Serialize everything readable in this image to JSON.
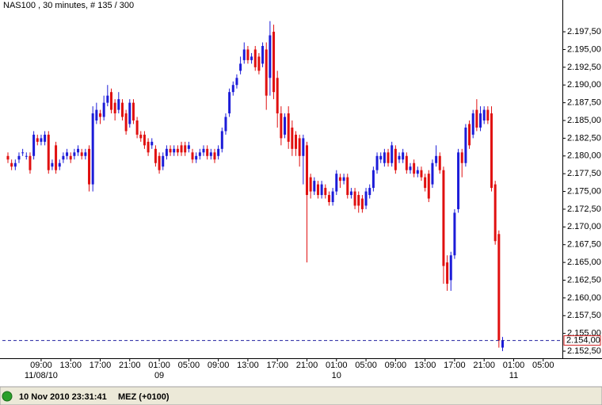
{
  "chart_data": {
    "type": "candlestick",
    "title": "NAS100 , 30 minutes, # 135 / 300",
    "up_color": "#1c1cd8",
    "down_color": "#e01010",
    "current_line_color": "#2020a0",
    "current_box_color": "#d02020",
    "open": [
      2180,
      2179,
      2178.5,
      2179.5,
      2180.5,
      2180,
      2180,
      2180,
      2182.5,
      2182,
      2182,
      2183,
      2178.5,
      2181.5,
      2178.5,
      2179.5,
      2180,
      2180,
      2180,
      2180.5,
      2180.5,
      2180,
      2181,
      2176,
      2185,
      2186,
      2185.5,
      2187.5,
      2189,
      2187.5,
      2186.5,
      2187.5,
      2186,
      2184.5,
      2187.5,
      2185,
      2183,
      2183,
      2182,
      2181.5,
      2181,
      2180,
      2178.5,
      2180,
      2181,
      2180.5,
      2181,
      2181.5,
      2181.5,
      2181,
      2180.5,
      2179.5,
      2180,
      2180.5,
      2181,
      2180,
      2180.5,
      2180,
      2181,
      2183.5,
      2186,
      2189,
      2190,
      2192,
      2193.5,
      2195,
      2193.5,
      2195,
      2194,
      2193,
      2195,
      2191,
      2197.5,
      2191,
      2186,
      2183,
      2186,
      2184,
      2183,
      2182.5,
      2180,
      2181.5,
      2177,
      2175,
      2176,
      2174.5,
      2175.5,
      2174.5,
      2173.5,
      2175,
      2177,
      2176.5,
      2177,
      2174.5,
      2175,
      2174.5,
      2174,
      2173,
      2174.5,
      2175.5,
      2178,
      2179.5,
      2179,
      2180.5,
      2179,
      2181,
      2179.5,
      2179.5,
      2180,
      2178,
      2179,
      2177.5,
      2178,
      2177,
      2177.5,
      2176,
      2179,
      2180,
      2178,
      2165,
      2162.5,
      2166,
      2172.5,
      2180.5,
      2179,
      2184.5,
      2183,
      2186.5,
      2184,
      2185,
      2186.5,
      2186,
      2176,
      2169,
      2153
    ],
    "high": [
      2180.5,
      2179.5,
      2179.5,
      2180.5,
      2181,
      2180.5,
      2180.5,
      2183.5,
      2183,
      2183,
      2183.5,
      2183.5,
      2179.5,
      2182,
      2179.5,
      2180.5,
      2181,
      2180.5,
      2181,
      2181.5,
      2181,
      2181,
      2181.5,
      2187,
      2187.5,
      2186.5,
      2188.5,
      2190,
      2189.5,
      2188,
      2189,
      2188,
      2186.5,
      2188,
      2188,
      2185.5,
      2183.5,
      2183.5,
      2182.5,
      2182.5,
      2181.5,
      2180.5,
      2180.5,
      2181.5,
      2181.5,
      2181.5,
      2181.5,
      2182,
      2182,
      2182,
      2181,
      2180.5,
      2181,
      2181.5,
      2181.5,
      2181,
      2181,
      2181.5,
      2184,
      2186,
      2189.5,
      2190.5,
      2191.5,
      2194,
      2196,
      2195.5,
      2194.5,
      2195.5,
      2194.5,
      2196,
      2196,
      2199,
      2198.5,
      2192,
      2187,
      2186,
      2187,
      2185,
      2183.5,
      2183,
      2183,
      2182,
      2177.5,
      2177,
      2176.5,
      2176.5,
      2176,
      2175,
      2175.5,
      2178,
      2177.5,
      2177.5,
      2177.5,
      2175.5,
      2175.5,
      2175,
      2174.5,
      2175.5,
      2176,
      2178.5,
      2180.5,
      2180.5,
      2181,
      2181,
      2182,
      2181.5,
      2180.5,
      2181,
      2180.5,
      2179,
      2179.5,
      2178.5,
      2178.5,
      2177.5,
      2178,
      2179.5,
      2181.5,
      2180.5,
      2178.5,
      2166,
      2166.5,
      2172.5,
      2181,
      2181,
      2184.5,
      2185,
      2186.5,
      2188,
      2187,
      2187,
      2187,
      2187,
      2176.5,
      2169.5,
      2154.5
    ],
    "low": [
      2179,
      2178,
      2178,
      2179,
      2180,
      2179.5,
      2177.5,
      2179.5,
      2181.5,
      2181.5,
      2181.5,
      2177.5,
      2178,
      2177.5,
      2178,
      2179,
      2179.5,
      2179,
      2179.5,
      2180,
      2179.5,
      2179.5,
      2175,
      2175,
      2184.5,
      2184.5,
      2185,
      2187,
      2186,
      2185,
      2186,
      2185,
      2183,
      2184,
      2184.5,
      2182.5,
      2182,
      2181,
      2180,
      2181,
      2178.5,
      2177.5,
      2178,
      2179.5,
      2180,
      2180,
      2180,
      2180,
      2180,
      2180.5,
      2179,
      2179,
      2179.5,
      2180,
      2179.5,
      2179.5,
      2179,
      2179.5,
      2180.5,
      2183,
      2185.5,
      2188.5,
      2189.5,
      2191.5,
      2193,
      2193,
      2193,
      2192,
      2191.5,
      2192.5,
      2186.5,
      2188.5,
      2188,
      2184,
      2181.5,
      2182.5,
      2181,
      2180,
      2180,
      2178.5,
      2176,
      2165,
      2174,
      2174.5,
      2174,
      2174,
      2174,
      2173,
      2173,
      2174.5,
      2175.5,
      2176,
      2174,
      2174,
      2172.5,
      2172,
      2172,
      2172.5,
      2174,
      2175,
      2177.5,
      2179,
      2178.5,
      2178.5,
      2178.5,
      2177.5,
      2179,
      2179,
      2177.5,
      2177.5,
      2177,
      2177,
      2176.5,
      2175,
      2173.5,
      2175.5,
      2178.5,
      2177.5,
      2162,
      2161,
      2161,
      2165.5,
      2172,
      2177,
      2178.5,
      2181,
      2182.5,
      2183.5,
      2183.5,
      2184.5,
      2184.5,
      2175,
      2167.5,
      2153,
      2152.5
    ],
    "close": [
      2179.5,
      2178.5,
      2179,
      2180,
      2180.5,
      2180,
      2178,
      2183,
      2182,
      2182.5,
      2183,
      2178,
      2179,
      2178,
      2179,
      2180,
      2180.5,
      2179.5,
      2180.5,
      2181,
      2180,
      2180.5,
      2176,
      2186,
      2186.5,
      2185.5,
      2187.5,
      2188.5,
      2186.5,
      2186,
      2188,
      2185.5,
      2183.5,
      2187.5,
      2185,
      2183,
      2182.5,
      2181.5,
      2180.5,
      2182,
      2179,
      2178,
      2180,
      2181,
      2180.5,
      2181,
      2180.5,
      2180.5,
      2180.5,
      2181.5,
      2179.5,
      2180,
      2180.5,
      2181,
      2180,
      2180.5,
      2179.5,
      2181,
      2183.5,
      2185.5,
      2189,
      2190,
      2191,
      2193,
      2195,
      2193.5,
      2194,
      2192.5,
      2192,
      2195.5,
      2188.5,
      2197,
      2189,
      2186,
      2182.5,
      2185.5,
      2182,
      2181,
      2181,
      2180,
      2182.5,
      2174.5,
      2175,
      2176.5,
      2174.5,
      2176,
      2174.5,
      2173.5,
      2175,
      2177.5,
      2176.5,
      2177,
      2174.5,
      2175,
      2173,
      2173,
      2172.5,
      2175,
      2175.5,
      2178,
      2180,
      2180,
      2180.5,
      2179,
      2181.5,
      2178,
      2180,
      2180.5,
      2178,
      2178.5,
      2177.5,
      2178,
      2177,
      2175.5,
      2174,
      2179,
      2180,
      2178,
      2164.5,
      2162,
      2166,
      2172,
      2180.5,
      2179,
      2184,
      2181.5,
      2186,
      2184,
      2186,
      2186.5,
      2185,
      2175.5,
      2168,
      2154,
      2154
    ],
    "xlim": [
      -1.5,
      150.2
    ],
    "xticks": [
      {
        "value": 9,
        "label": "09:00"
      },
      {
        "value": 17,
        "label": "13:00"
      },
      {
        "value": 25,
        "label": "17:00"
      },
      {
        "value": 33,
        "label": "21:00"
      },
      {
        "value": 41,
        "label": "01:00"
      },
      {
        "value": 49,
        "label": "05:00"
      },
      {
        "value": 57,
        "label": "09:00"
      },
      {
        "value": 65,
        "label": "13:00"
      },
      {
        "value": 73,
        "label": "17:00"
      },
      {
        "value": 81,
        "label": "21:00"
      },
      {
        "value": 89,
        "label": "01:00"
      },
      {
        "value": 97,
        "label": "05:00"
      },
      {
        "value": 105,
        "label": "09:00"
      },
      {
        "value": 113,
        "label": "13:00"
      },
      {
        "value": 121,
        "label": "17:00"
      },
      {
        "value": 129,
        "label": "21:00"
      },
      {
        "value": 137,
        "label": "01:00"
      },
      {
        "value": 145,
        "label": "05:00"
      }
    ],
    "xdates": [
      {
        "value": 9,
        "label": "11/08/10"
      },
      {
        "value": 41,
        "label": "09"
      },
      {
        "value": 89,
        "label": "10"
      },
      {
        "value": 137,
        "label": "11"
      }
    ],
    "ylim": [
      2151.5,
      2200.3
    ],
    "yticks": [
      {
        "value": 2152.5,
        "label": "2.152,50"
      },
      {
        "value": 2155,
        "label": "2.155,00"
      },
      {
        "value": 2157.5,
        "label": "2.157,50"
      },
      {
        "value": 2160,
        "label": "2.160,00"
      },
      {
        "value": 2162.5,
        "label": "2.162,50"
      },
      {
        "value": 2165,
        "label": "2.165,00"
      },
      {
        "value": 2167.5,
        "label": "2.167,50"
      },
      {
        "value": 2170,
        "label": "2.170,00"
      },
      {
        "value": 2172.5,
        "label": "2.172,50"
      },
      {
        "value": 2175,
        "label": "2.175,00"
      },
      {
        "value": 2177.5,
        "label": "2.177,50"
      },
      {
        "value": 2180,
        "label": "2.180,00"
      },
      {
        "value": 2182.5,
        "label": "2.182,50"
      },
      {
        "value": 2185,
        "label": "2.185,00"
      },
      {
        "value": 2187.5,
        "label": "2.187,50"
      },
      {
        "value": 2190,
        "label": "2.190,00"
      },
      {
        "value": 2192.5,
        "label": "2.192,50"
      },
      {
        "value": 2195,
        "label": "2.195,00"
      },
      {
        "value": 2197.5,
        "label": "2.197,50"
      }
    ],
    "current_price": {
      "value": 2154,
      "label": "2.154,00"
    }
  },
  "status_bar": {
    "datetime": "10 Nov 2010 23:31:41",
    "timezone": "MEZ (+0100)"
  }
}
